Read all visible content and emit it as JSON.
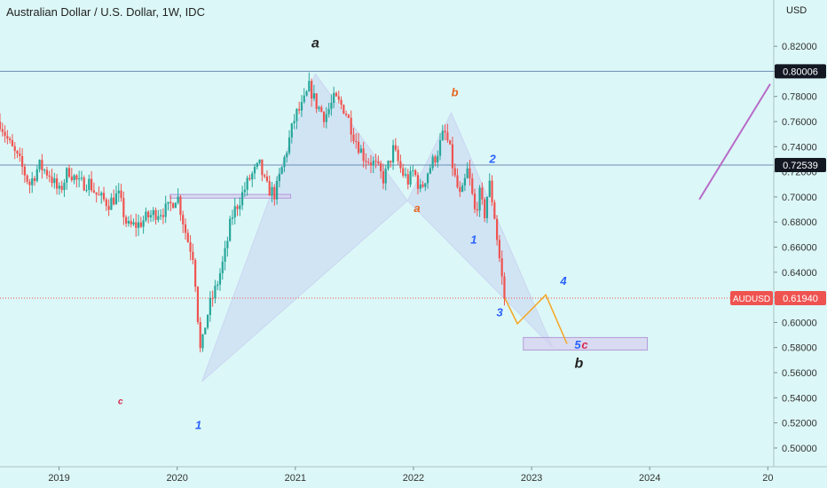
{
  "header": {
    "symbol_title": "Australian Dollar / U.S. Dollar, 1W, IDC",
    "currency": "USD"
  },
  "colors": {
    "background": "#dcf7f7",
    "up_candle": "#26a69a",
    "down_candle": "#ef5350",
    "pattern_fill": "#c9d6f2",
    "projection": "#f5a623",
    "trend_line": "#b86bc9",
    "price_line": "#ef5350"
  },
  "chart_data": {
    "type": "candlestick",
    "symbol": "AUDUSD",
    "timeframe": "1W",
    "ylim": [
      0.495,
      0.83
    ],
    "x_range": [
      2018.5,
      2025.05
    ],
    "y_ticks": [
      "0.50000",
      "0.52000",
      "0.54000",
      "0.56000",
      "0.58000",
      "0.60000",
      "0.62000",
      "0.64000",
      "0.66000",
      "0.68000",
      "0.70000",
      "0.72000",
      "0.74000",
      "0.76000",
      "0.78000",
      "0.80000",
      "0.82000"
    ],
    "x_ticks": [
      {
        "t": 2019,
        "label": "2019"
      },
      {
        "t": 2020,
        "label": "2020"
      },
      {
        "t": 2021,
        "label": "2021"
      },
      {
        "t": 2022,
        "label": "2022"
      },
      {
        "t": 2023,
        "label": "2023"
      },
      {
        "t": 2024,
        "label": "2024"
      },
      {
        "t": 2025,
        "label": "20"
      }
    ],
    "price_path": [
      [
        2018.5,
        0.76
      ],
      [
        2018.58,
        0.742
      ],
      [
        2018.67,
        0.727
      ],
      [
        2018.75,
        0.71
      ],
      [
        2018.83,
        0.725
      ],
      [
        2018.92,
        0.718
      ],
      [
        2019.0,
        0.703
      ],
      [
        2019.08,
        0.722
      ],
      [
        2019.17,
        0.71
      ],
      [
        2019.25,
        0.712
      ],
      [
        2019.33,
        0.7
      ],
      [
        2019.42,
        0.695
      ],
      [
        2019.5,
        0.702
      ],
      [
        2019.58,
        0.676
      ],
      [
        2019.67,
        0.678
      ],
      [
        2019.75,
        0.684
      ],
      [
        2019.83,
        0.688
      ],
      [
        2019.92,
        0.69
      ],
      [
        2020.0,
        0.702
      ],
      [
        2020.08,
        0.668
      ],
      [
        2020.14,
        0.652
      ],
      [
        2020.17,
        0.61
      ],
      [
        2020.2,
        0.572
      ],
      [
        2020.23,
        0.595
      ],
      [
        2020.27,
        0.612
      ],
      [
        2020.33,
        0.628
      ],
      [
        2020.4,
        0.652
      ],
      [
        2020.46,
        0.684
      ],
      [
        2020.54,
        0.7
      ],
      [
        2020.62,
        0.716
      ],
      [
        2020.7,
        0.725
      ],
      [
        2020.75,
        0.708
      ],
      [
        2020.83,
        0.702
      ],
      [
        2020.92,
        0.735
      ],
      [
        2021.0,
        0.765
      ],
      [
        2021.06,
        0.772
      ],
      [
        2021.12,
        0.788
      ],
      [
        2021.17,
        0.775
      ],
      [
        2021.25,
        0.764
      ],
      [
        2021.33,
        0.778
      ],
      [
        2021.42,
        0.77
      ],
      [
        2021.5,
        0.748
      ],
      [
        2021.58,
        0.732
      ],
      [
        2021.67,
        0.726
      ],
      [
        2021.75,
        0.714
      ],
      [
        2021.83,
        0.738
      ],
      [
        2021.9,
        0.72
      ],
      [
        2021.96,
        0.712
      ],
      [
        2022.0,
        0.721
      ],
      [
        2022.06,
        0.705
      ],
      [
        2022.12,
        0.72
      ],
      [
        2022.2,
        0.735
      ],
      [
        2022.26,
        0.752
      ],
      [
        2022.3,
        0.741
      ],
      [
        2022.35,
        0.715
      ],
      [
        2022.4,
        0.698
      ],
      [
        2022.46,
        0.722
      ],
      [
        2022.52,
        0.688
      ],
      [
        2022.56,
        0.702
      ],
      [
        2022.6,
        0.685
      ],
      [
        2022.64,
        0.712
      ],
      [
        2022.68,
        0.69
      ],
      [
        2022.71,
        0.665
      ],
      [
        2022.74,
        0.642
      ],
      [
        2022.77,
        0.6194
      ]
    ],
    "horizontal_levels": [
      {
        "price": 0.80006,
        "label": "0.80006"
      },
      {
        "price": 0.72539,
        "label": "0.72539"
      }
    ],
    "current_price": {
      "symbol": "AUDUSD",
      "price": 0.6194,
      "label": "0.61940"
    },
    "pattern_triangles": [
      [
        [
          2020.21,
          0.553
        ],
        [
          2021.17,
          0.798
        ],
        [
          2021.95,
          0.697
        ]
      ],
      [
        [
          2021.95,
          0.697
        ],
        [
          2022.32,
          0.767
        ],
        [
          2023.18,
          0.58
        ]
      ]
    ],
    "projection": [
      [
        2022.77,
        0.62
      ],
      [
        2022.88,
        0.599
      ],
      [
        2023.12,
        0.622
      ],
      [
        2023.3,
        0.583
      ]
    ],
    "trend_line": [
      [
        2024.42,
        0.698
      ],
      [
        2025.02,
        0.79
      ]
    ],
    "boxes": [
      {
        "t1": 2019.94,
        "t2": 2020.96,
        "p1": 0.699,
        "p2": 0.702
      },
      {
        "t1": 2022.93,
        "t2": 2023.98,
        "p1": 0.578,
        "p2": 0.588
      }
    ],
    "wave_labels": [
      {
        "text": "a",
        "t": 2021.17,
        "p": 0.819,
        "color": "#222222",
        "size": 16
      },
      {
        "text": "b",
        "t": 2022.35,
        "p": 0.78,
        "color": "#e8641e",
        "size": 13
      },
      {
        "text": "a",
        "t": 2022.03,
        "p": 0.688,
        "color": "#e8641e",
        "size": 13
      },
      {
        "text": "2",
        "t": 2022.67,
        "p": 0.727,
        "color": "#2962ff",
        "size": 13
      },
      {
        "text": "1",
        "t": 2022.51,
        "p": 0.663,
        "color": "#2962ff",
        "size": 13
      },
      {
        "text": "3",
        "t": 2022.73,
        "p": 0.605,
        "color": "#2962ff",
        "size": 13
      },
      {
        "text": "4",
        "t": 2023.27,
        "p": 0.63,
        "color": "#2962ff",
        "size": 13
      },
      {
        "text": "5",
        "t": 2023.39,
        "p": 0.579,
        "color": "#2962ff",
        "size": 13
      },
      {
        "text": "c",
        "t": 2023.45,
        "p": 0.579,
        "color": "#d9264f",
        "size": 13
      },
      {
        "text": "b",
        "t": 2023.4,
        "p": 0.564,
        "color": "#222222",
        "size": 16
      },
      {
        "text": "1",
        "t": 2020.18,
        "p": 0.515,
        "color": "#2962ff",
        "size": 13
      },
      {
        "text": "c",
        "t": 2019.52,
        "p": 0.535,
        "color": "#d9264f",
        "size": 10
      }
    ]
  }
}
